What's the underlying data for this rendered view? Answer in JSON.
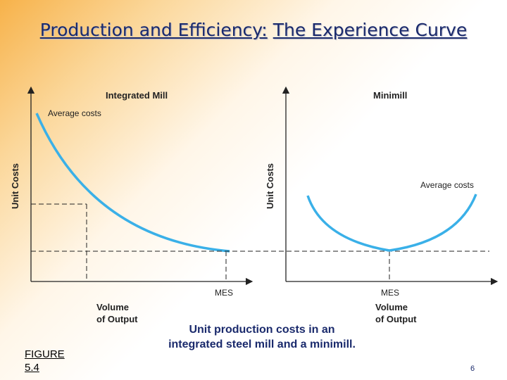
{
  "title": {
    "part1": "Production and Efficiency:",
    "part2": "The Experience Curve"
  },
  "panels": [
    {
      "heading": "Integrated Mill",
      "y_label": "Unit Costs",
      "curve_label": "Average costs",
      "marker_label": "MES",
      "x_label_line1": "Volume",
      "x_label_line2": "of Output"
    },
    {
      "heading": "Minimill",
      "y_label": "Unit Costs",
      "curve_label": "Average costs",
      "marker_label": "MES",
      "x_label_line1": "Volume",
      "x_label_line2": "of Output"
    }
  ],
  "figure": {
    "line1": "FIGURE",
    "line2": "5.4"
  },
  "caption": "Unit production costs in an integrated steel mill and a minimill.",
  "page_number": "6",
  "colors": {
    "curve": "#3ab0e8",
    "title": "#1a2a6c",
    "axis": "#222222"
  }
}
